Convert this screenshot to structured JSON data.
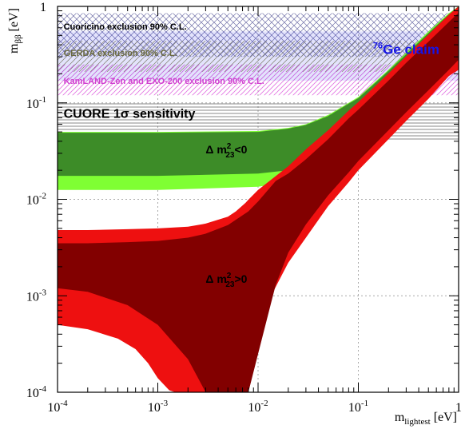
{
  "chart_data": {
    "type": "area",
    "title": "",
    "x_scale": "log",
    "y_scale": "log",
    "xlim": [
      0.0001,
      1
    ],
    "ylim": [
      0.0001,
      1
    ],
    "grid": true,
    "xlabel": {
      "main": "m",
      "sub": "lightest",
      "unit": " [eV]"
    },
    "ylabel": {
      "main": "m",
      "sub": "ββ",
      "unit": " [eV]"
    },
    "x_ticks": [
      {
        "value": 0.0001,
        "base": "10",
        "exp": "-4"
      },
      {
        "value": 0.001,
        "base": "10",
        "exp": "-3"
      },
      {
        "value": 0.01,
        "base": "10",
        "exp": "-2"
      },
      {
        "value": 0.1,
        "base": "10",
        "exp": "-1"
      },
      {
        "value": 1,
        "base": "1",
        "exp": ""
      }
    ],
    "y_ticks": [
      {
        "value": 0.0001,
        "base": "10",
        "exp": "-4"
      },
      {
        "value": 0.001,
        "base": "10",
        "exp": "-3"
      },
      {
        "value": 0.01,
        "base": "10",
        "exp": "-2"
      },
      {
        "value": 0.1,
        "base": "10",
        "exp": "-1"
      },
      {
        "value": 1,
        "base": "1",
        "exp": ""
      }
    ],
    "exclusion_bands": [
      {
        "label": "Cuoricino exclusion 90% C.L.",
        "y_range": [
          0.3,
          0.85
        ],
        "color": "#7070a8",
        "hatch": "cross"
      },
      {
        "label": "GERDA exclusion 90% C.L.",
        "y_range": [
          0.21,
          0.44
        ],
        "color": "#8a8a55",
        "hatch": "diagonal"
      },
      {
        "label": "KamLAND-Zen and EXO-200 exclusion 90% C.L.",
        "y_range": [
          0.12,
          0.25
        ],
        "color": "#e070e0",
        "hatch": "diagonal"
      },
      {
        "label": "CUORE 1σ sensitivity",
        "y_range": [
          0.04,
          0.1
        ],
        "color": "#555555",
        "hatch": "horizontal"
      }
    ],
    "claim": {
      "label_mass": "76",
      "label_text": "Ge claim",
      "y_range": [
        0.17,
        0.55
      ],
      "color": "#1515e8"
    },
    "series": [
      {
        "name": "Δ m²₂₃<0",
        "label_text": "Δ m",
        "label_sup": "2",
        "label_sub": "23",
        "label_rel": "<0",
        "label_pos": [
          0.003,
          0.033
        ],
        "regions": [
          {
            "role": "3-sigma",
            "color": "#7fff33",
            "x": [
              0.0001,
              0.001,
              0.01,
              0.02,
              0.03,
              0.05,
              0.08,
              0.1,
              0.2,
              0.3,
              0.5,
              0.8,
              1
            ],
            "upper": [
              0.05,
              0.05,
              0.051,
              0.055,
              0.06,
              0.075,
              0.1,
              0.115,
              0.22,
              0.33,
              0.55,
              0.85,
              1.0
            ],
            "lower": [
              0.0125,
              0.0125,
              0.0135,
              0.015,
              0.0185,
              0.025,
              0.036,
              0.045,
              0.087,
              0.13,
              0.21,
              0.34,
              0.42
            ]
          },
          {
            "role": "1-sigma",
            "color": "#3d8c28",
            "x": [
              0.0001,
              0.001,
              0.01,
              0.02,
              0.03,
              0.05,
              0.08,
              0.1,
              0.2,
              0.3,
              0.5,
              0.8,
              1
            ],
            "upper": [
              0.049,
              0.049,
              0.05,
              0.054,
              0.059,
              0.073,
              0.098,
              0.112,
              0.215,
              0.32,
              0.53,
              0.83,
              1.0
            ],
            "lower": [
              0.0175,
              0.0175,
              0.0185,
              0.02,
              0.024,
              0.033,
              0.046,
              0.056,
              0.11,
              0.165,
              0.27,
              0.43,
              0.54
            ]
          }
        ]
      },
      {
        "name": "Δ m²₂₃>0",
        "label_text": "Δ m",
        "label_sup": "2",
        "label_sub": "23",
        "label_rel": ">0",
        "label_pos": [
          0.003,
          0.0015
        ],
        "regions": [
          {
            "role": "3-sigma",
            "color": "#ee1010",
            "x": [
              0.0001,
              0.0002,
              0.0005,
              0.001,
              0.002,
              0.003,
              0.005,
              0.006,
              0.0075,
              0.008,
              0.01,
              0.02,
              0.03,
              0.05,
              0.08,
              0.1,
              0.2,
              0.3,
              0.5,
              0.8,
              1
            ],
            "upper": [
              0.0048,
              0.0048,
              0.0049,
              0.005,
              0.0052,
              0.0056,
              0.0066,
              0.0075,
              0.0092,
              0.0099,
              0.0125,
              0.022,
              0.033,
              0.052,
              0.083,
              0.102,
              0.202,
              0.305,
              0.51,
              0.82,
              1.0
            ],
            "lower": [
              0.00015,
              0.00011,
              0.0001,
              0.0001,
              0.0001,
              0.0001,
              0.0001,
              0.0001,
              0.0001,
              0.00015,
              0.00055,
              0.0022,
              0.004,
              0.0085,
              0.015,
              0.02,
              0.042,
              0.065,
              0.11,
              0.19,
              0.22
            ]
          },
          {
            "role": "1-sigma",
            "color": "#820000",
            "x": [
              0.0001,
              0.0002,
              0.0005,
              0.001,
              0.002,
              0.003,
              0.005,
              0.008,
              0.01,
              0.015,
              0.02,
              0.03,
              0.05,
              0.08,
              0.1,
              0.2,
              0.3,
              0.5,
              0.8,
              1
            ],
            "upper": [
              0.0035,
              0.0035,
              0.0036,
              0.0037,
              0.004,
              0.0044,
              0.0054,
              0.0075,
              0.0095,
              0.0155,
              0.0185,
              0.026,
              0.042,
              0.069,
              0.085,
              0.17,
              0.26,
              0.43,
              0.69,
              0.86
            ],
            "lower": [
              0.0012,
              0.0011,
              0.0008,
              0.0005,
              0.00022,
              0.0001,
              0.0001,
              0.0001,
              0.00025,
              0.0013,
              0.0028,
              0.0055,
              0.011,
              0.019,
              0.025,
              0.052,
              0.08,
              0.135,
              0.22,
              0.28
            ]
          }
        ]
      },
      {
        "name": "white-core",
        "regions": [
          {
            "role": "cutout",
            "color": "#ffffff",
            "x": [
              0.0001,
              0.0002,
              0.0004,
              0.0006,
              0.0008,
              0.001,
              0.0013,
              0.0015
            ],
            "upper": [
              0.0005,
              0.00045,
              0.00036,
              0.00028,
              0.0002,
              0.00014,
              0.000105,
              0.0001
            ],
            "lower": [
              0.0001,
              0.0001,
              0.0001,
              0.0001,
              0.0001,
              0.0001,
              0.0001,
              0.0001
            ]
          }
        ]
      }
    ],
    "band_text_positions": {
      "Cuoricino": [
        0.000115,
        0.62
      ],
      "GERDA": [
        0.000115,
        0.33
      ],
      "KamLAND": [
        0.000115,
        0.17
      ],
      "CUORE": [
        0.000115,
        0.078
      ],
      "claim": [
        0.14,
        0.36
      ]
    }
  }
}
